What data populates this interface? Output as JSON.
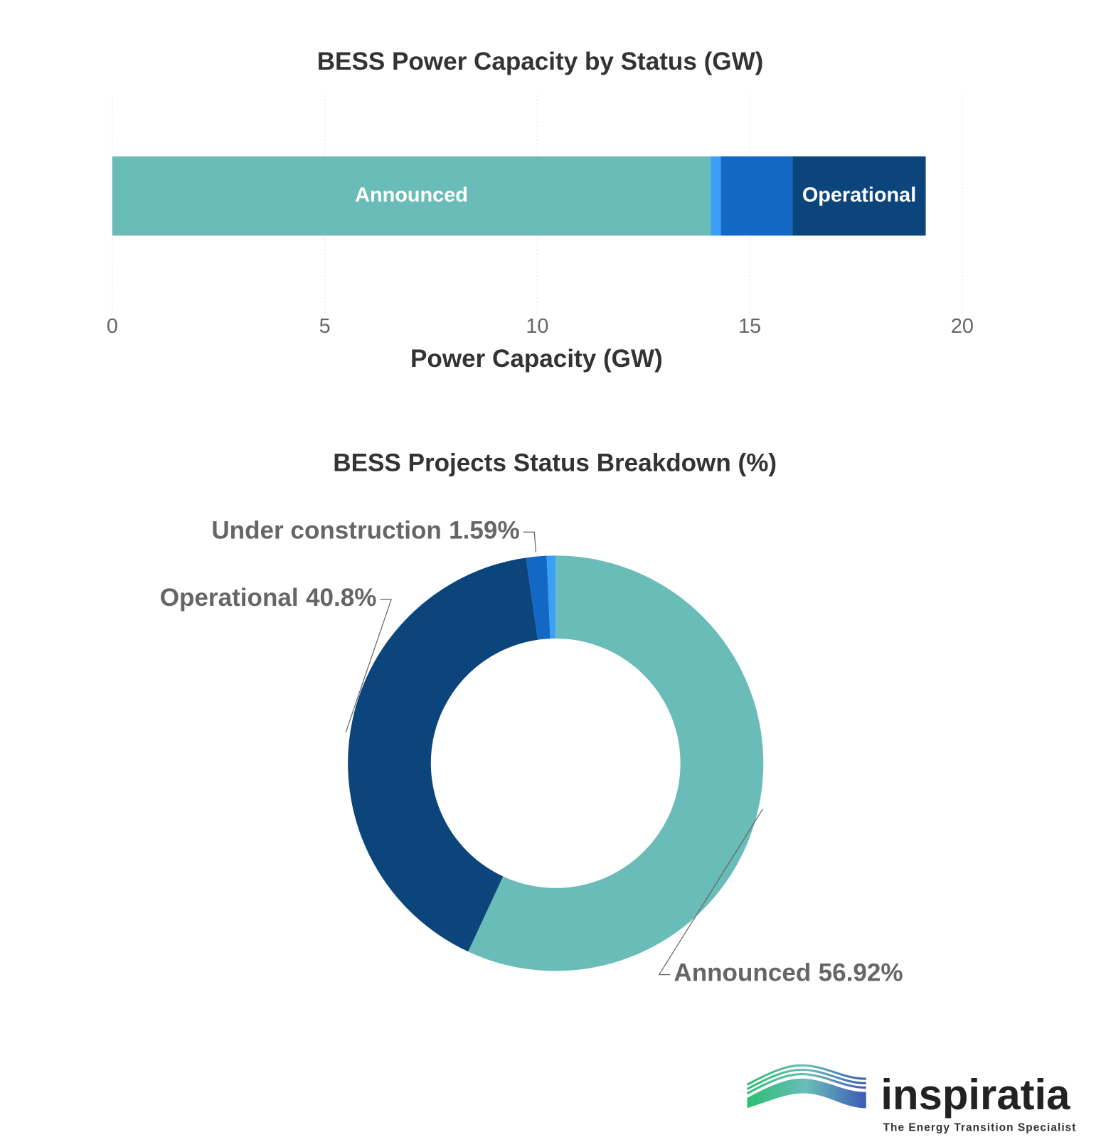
{
  "chart_data": [
    {
      "type": "stacked-hbar",
      "title": "BESS Power Capacity by Status (GW)",
      "xlabel": "Power Capacity (GW)",
      "xlim": [
        0,
        20
      ],
      "xticks": [
        0,
        5,
        10,
        15,
        20
      ],
      "grid": true,
      "series": [
        {
          "name": "Announced",
          "color": "#6abcb9",
          "values": [
            14.08
          ]
        },
        {
          "name": null,
          "color": "#3aa0f5",
          "values": [
            0.24
          ]
        },
        {
          "name": null,
          "color": "#1368c4",
          "values": [
            1.69
          ]
        },
        {
          "name": "Operational",
          "color": "#0b457c",
          "values": [
            3.13
          ]
        }
      ]
    },
    {
      "type": "donut",
      "title": "BESS Projects Status Breakdown (%)",
      "categories": [
        "Announced",
        "Operational",
        "Under construction",
        null
      ],
      "values": [
        56.92,
        40.8,
        1.59,
        0.69
      ],
      "value_labels": [
        "56.92%",
        "40.8%",
        "1.59%",
        null
      ],
      "colors": [
        "#6abcb9",
        "#0b457c",
        "#1368c4",
        "#3aa0f5"
      ]
    }
  ],
  "logo": {
    "name": "inspiratia",
    "tagline": "The Energy Transition Specialist"
  }
}
